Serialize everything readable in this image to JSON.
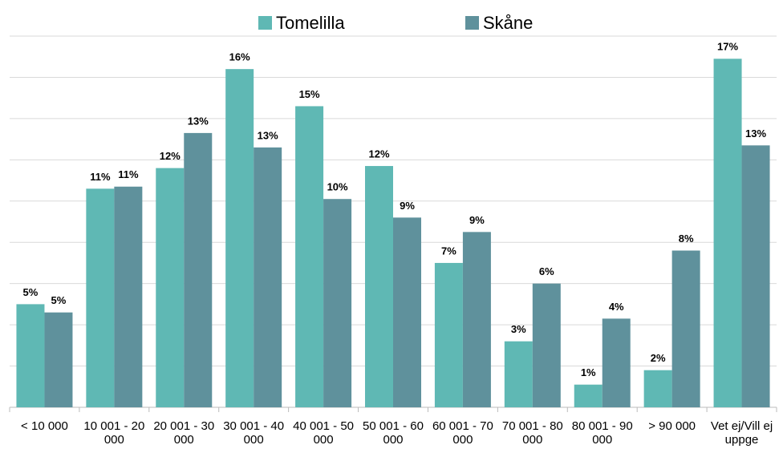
{
  "chart_data": {
    "type": "bar",
    "categories": [
      "< 10 000",
      "10 001 - 20 000",
      "20 001 - 30 000",
      "30 001 - 40 000",
      "40 001 - 50 000",
      "50 001 - 60 000",
      "60 001 - 70 000",
      "70 001 - 80 000",
      "80 001 - 90 000",
      "> 90 000",
      "Vet ej/Vill ej uppge"
    ],
    "series": [
      {
        "name": "Tomelilla",
        "color": "#5fb8b4",
        "values": [
          5.0,
          10.6,
          11.6,
          16.4,
          14.6,
          11.7,
          7.0,
          3.2,
          1.1,
          1.8,
          16.9
        ],
        "value_labels": [
          "5%",
          "11%",
          "12%",
          "16%",
          "15%",
          "12%",
          "7%",
          "3%",
          "1%",
          "2%",
          "17%"
        ]
      },
      {
        "name": "Skåne",
        "color": "#5f919c",
        "values": [
          4.6,
          10.7,
          13.3,
          12.6,
          10.1,
          9.2,
          8.5,
          6.0,
          4.3,
          7.6,
          12.7
        ],
        "value_labels": [
          "5%",
          "11%",
          "13%",
          "13%",
          "10%",
          "9%",
          "9%",
          "6%",
          "4%",
          "8%",
          "13%"
        ]
      }
    ],
    "ylim": [
      0,
      18
    ],
    "yticks": [
      0,
      2,
      4,
      6,
      8,
      10,
      12,
      14,
      16,
      18
    ],
    "grid": true,
    "legend": "top"
  }
}
